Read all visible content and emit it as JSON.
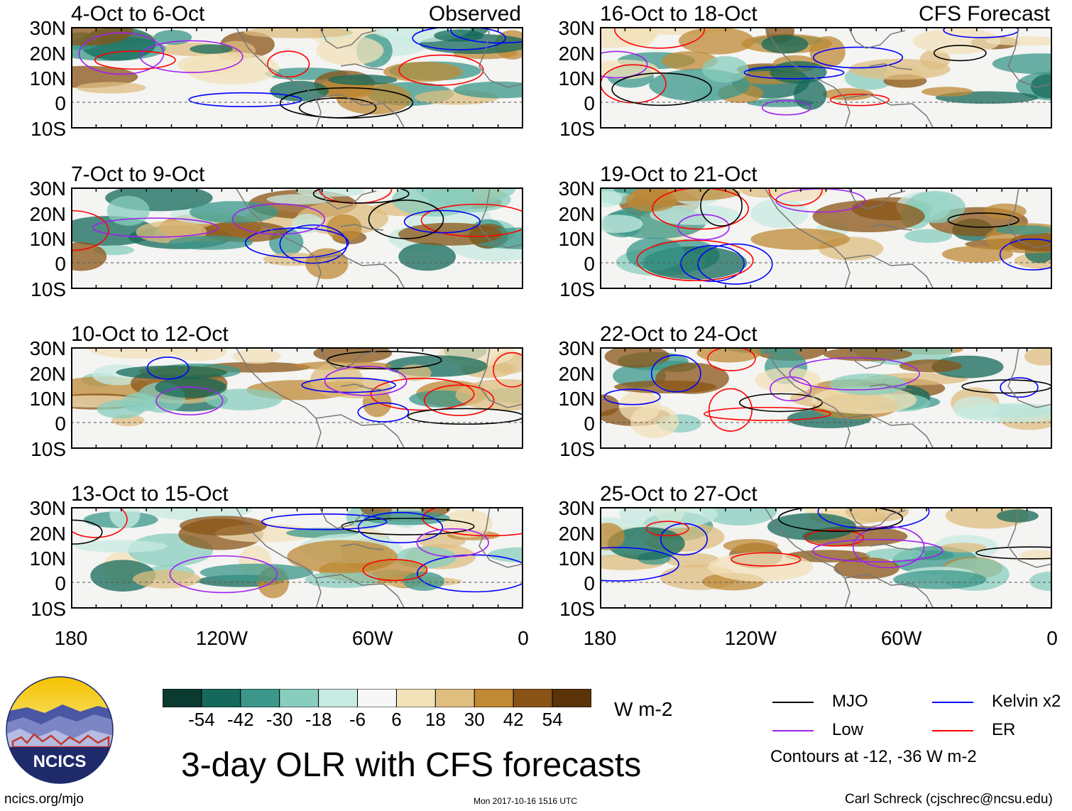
{
  "figure": {
    "title": "3-day OLR with CFS forecasts",
    "units": "W m-2",
    "source_link": "ncics.org/mjo",
    "timestamp": "Mon 2017-10-16 1516 UTC",
    "author": "Carl Schreck (cjschrec@ncsu.edu)",
    "contour_note": "Contours at -12, -36 W m-2",
    "logo_text": "NCICS"
  },
  "chart_data": {
    "type": "heatmap",
    "variable": "OLR anomaly (3-day mean)",
    "lat_ticks": [
      "30N",
      "20N",
      "10N",
      "0",
      "10S"
    ],
    "lon_ticks": [
      "180",
      "120W",
      "60W",
      "0"
    ],
    "lat_range": [
      -10,
      30
    ],
    "lon_range": [
      -180,
      0
    ],
    "observed_label": "Observed",
    "forecast_label": "CFS Forecast",
    "panels_left": [
      {
        "title": "4-Oct to 6-Oct"
      },
      {
        "title": "7-Oct to 9-Oct"
      },
      {
        "title": "10-Oct to 12-Oct"
      },
      {
        "title": "13-Oct to 15-Oct"
      }
    ],
    "panels_right": [
      {
        "title": "16-Oct to 18-Oct"
      },
      {
        "title": "19-Oct to 21-Oct"
      },
      {
        "title": "22-Oct to 24-Oct"
      },
      {
        "title": "25-Oct to 27-Oct"
      }
    ],
    "colorbar": {
      "ticks": [
        "-54",
        "-42",
        "-30",
        "-18",
        "-6",
        "6",
        "18",
        "30",
        "42",
        "54"
      ],
      "colors": [
        "#0b3a30",
        "#14695a",
        "#3b978a",
        "#88cdbd",
        "#c8ebe2",
        "#f7f7f7",
        "#f3e2b9",
        "#dfbe80",
        "#bf8935",
        "#8a5416",
        "#5a3408"
      ]
    },
    "legend": [
      {
        "label": "MJO",
        "color": "#000000"
      },
      {
        "label": "Kelvin x2",
        "color": "#0000ff"
      },
      {
        "label": "Low",
        "color": "#a020f0"
      },
      {
        "label": "ER",
        "color": "#ff0000"
      }
    ]
  }
}
